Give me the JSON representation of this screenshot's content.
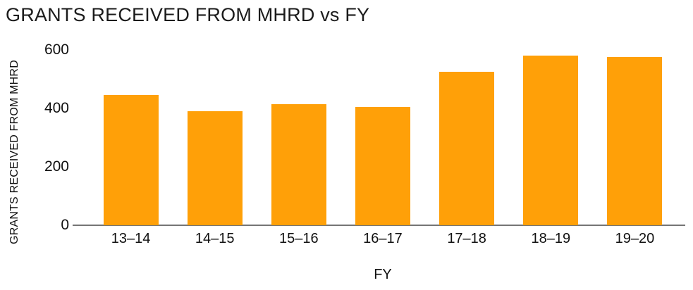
{
  "colors": {
    "bar": "#FFA008",
    "axis_line": "#757575",
    "title_text": "#1b1b1b",
    "tick_text": "#111111",
    "background": "#ffffff"
  },
  "chart_data": {
    "type": "bar",
    "title": "GRANTS RECEIVED FROM MHRD vs FY",
    "xlabel": "FY",
    "ylabel": "GRANTS RECEIVED FROM MHRD",
    "categories": [
      "13–14",
      "14–15",
      "15–16",
      "16–17",
      "17–18",
      "18–19",
      "19–20"
    ],
    "values": [
      445,
      390,
      415,
      405,
      525,
      580,
      575
    ],
    "ylim": [
      0,
      600
    ],
    "yticks": [
      0,
      200,
      400,
      600
    ],
    "grid": false,
    "legend": "none",
    "bar_color": "#FFA008"
  }
}
